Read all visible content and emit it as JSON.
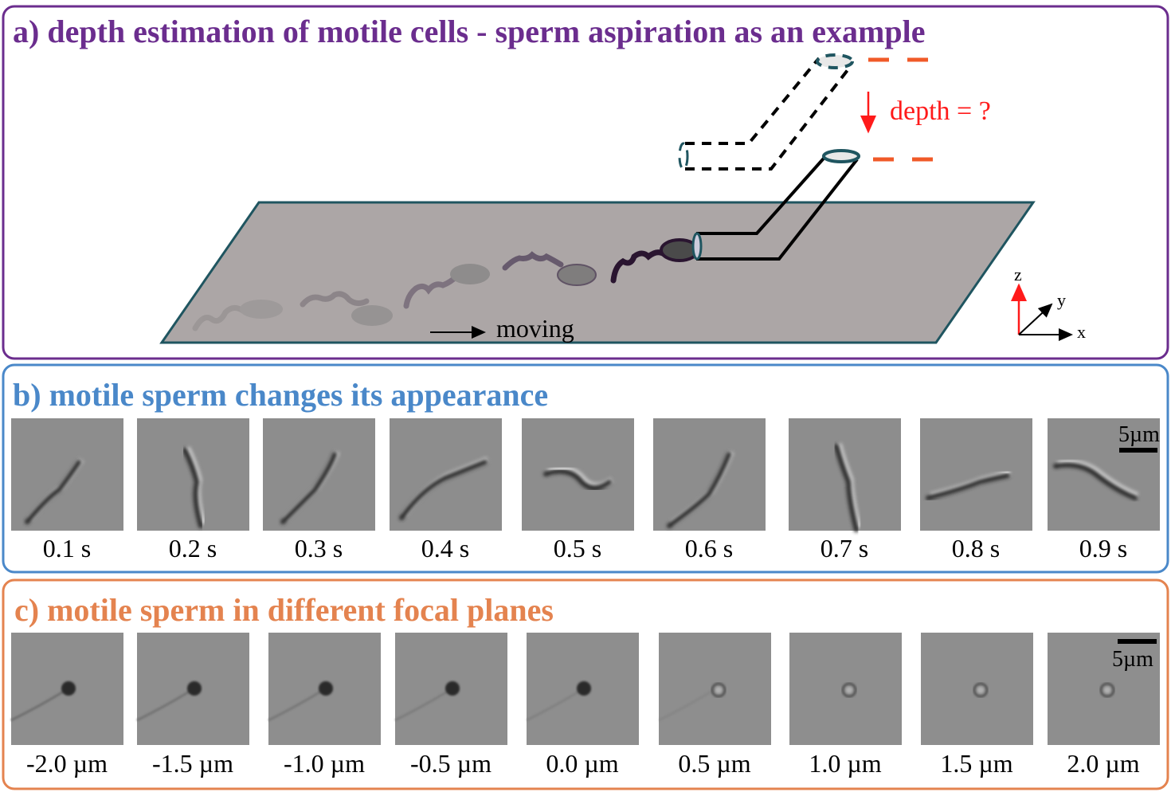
{
  "colors": {
    "panel_a": "#6b2d8e",
    "panel_b": "#4a88c9",
    "panel_c": "#e4834f",
    "depth": "#ff1a1a",
    "dash_marker": "#f05a28",
    "plane": "#aca6a6"
  },
  "panel_a": {
    "title": "a) depth estimation of motile cells - sperm aspiration as an example",
    "depth_label": "depth = ?",
    "moving_label": "moving",
    "axes": {
      "x": "x",
      "y": "y",
      "z": "z"
    }
  },
  "panel_b": {
    "title": "b) motile sperm changes its appearance",
    "scale_bar": "5µm",
    "frames": [
      "0.1 s",
      "0.2 s",
      "0.3 s",
      "0.4 s",
      "0.5 s",
      "0.6 s",
      "0.7 s",
      "0.8 s",
      "0.9 s"
    ]
  },
  "panel_c": {
    "title": "c) motile sperm in different focal planes",
    "scale_bar": "5µm",
    "frames": [
      "-2.0 µm",
      "-1.5 µm",
      "-1.0 µm",
      "-0.5 µm",
      "0.0 µm",
      "0.5 µm",
      "1.0 µm",
      "1.5 µm",
      "2.0 µm"
    ]
  }
}
